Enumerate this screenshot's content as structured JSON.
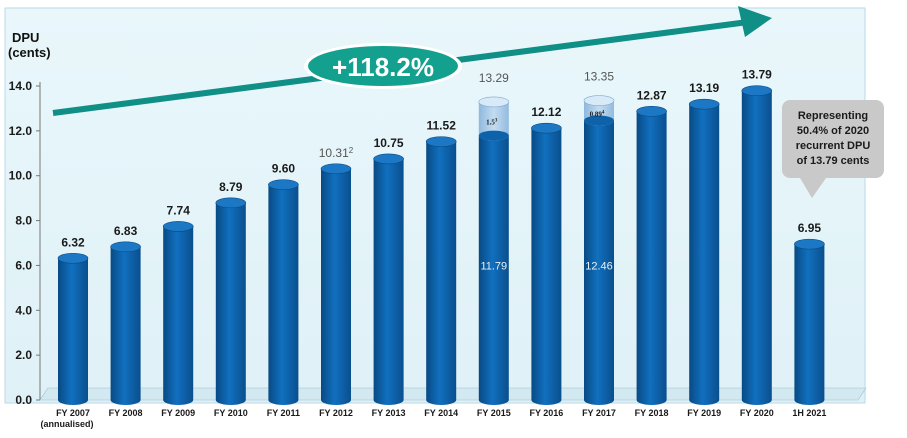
{
  "chart_data": {
    "type": "bar",
    "ylabel": "DPU\n(cents)",
    "ylim": [
      0,
      14
    ],
    "yticks": [
      "0.0",
      "2.0",
      "4.0",
      "6.0",
      "8.0",
      "10.0",
      "12.0",
      "14.0"
    ],
    "categories": [
      "FY 2007",
      "FY 2008",
      "FY 2009",
      "FY 2010",
      "FY 2011",
      "FY 2012",
      "FY 2013",
      "FY 2014",
      "FY 2015",
      "FY 2016",
      "FY 2017",
      "FY 2018",
      "FY 2019",
      "FY 2020",
      "1H 2021"
    ],
    "category_sublabels": [
      "(annualised)",
      "",
      "",
      "",
      "",
      "",
      "",
      "",
      "",
      "",
      "",
      "",
      "",
      "",
      ""
    ],
    "values": [
      6.32,
      6.83,
      7.74,
      8.79,
      9.6,
      10.31,
      10.75,
      11.52,
      13.29,
      12.12,
      13.35,
      12.87,
      13.19,
      13.79,
      6.95
    ],
    "value_labels": [
      "6.32",
      "6.83",
      "7.74",
      "8.79",
      "9.60",
      "10.31",
      "10.75",
      "11.52",
      "13.29",
      "12.12",
      "13.35",
      "12.87",
      "13.19",
      "13.79",
      "6.95"
    ],
    "value_label_superscripts": [
      "",
      "",
      "",
      "",
      "",
      "2",
      "",
      "",
      "",
      "",
      "",
      "",
      "",
      "",
      ""
    ],
    "stacked_segments": [
      {
        "category": "FY 2015",
        "base": 11.79,
        "base_label": "11.79",
        "top": 1.5,
        "top_label": "1.5",
        "top_superscript": "3"
      },
      {
        "category": "FY 2017",
        "base": 12.46,
        "base_label": "12.46",
        "top": 0.89,
        "top_label": "0.89",
        "top_superscript": "4"
      }
    ],
    "growth_label": "+118.2%",
    "callout": [
      "Representing",
      "50.4% of 2020",
      "recurrent DPU",
      "of 13.79 cents"
    ],
    "colors": {
      "bar": "#0d5fa3",
      "bar_top": "#1a6fb8",
      "segment": "#a9cbe8",
      "arrow": "#0f8f86",
      "badge": "#14a08f",
      "plot_bg": "#e4f4f9",
      "callout_bg": "#c9c9c9"
    }
  }
}
